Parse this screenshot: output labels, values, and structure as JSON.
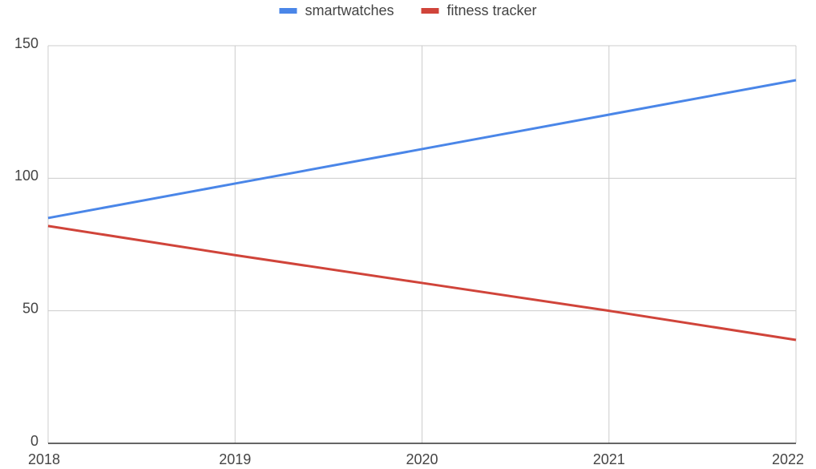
{
  "chart_data": {
    "type": "line",
    "x": [
      2018,
      2019,
      2020,
      2021,
      2022
    ],
    "series": [
      {
        "name": "smartwatches",
        "color": "#4a86e8",
        "values": [
          85,
          98,
          111,
          124,
          137
        ]
      },
      {
        "name": "fitness tracker",
        "color": "#d0443a",
        "values": [
          82,
          71,
          60.5,
          50,
          39
        ]
      }
    ],
    "xlim": [
      2018,
      2022
    ],
    "xticks": [
      2018,
      2019,
      2020,
      2021,
      2022
    ],
    "ylim": [
      0,
      150
    ],
    "yticks": [
      0,
      50,
      100,
      150
    ],
    "grid": true,
    "legend": "top"
  }
}
